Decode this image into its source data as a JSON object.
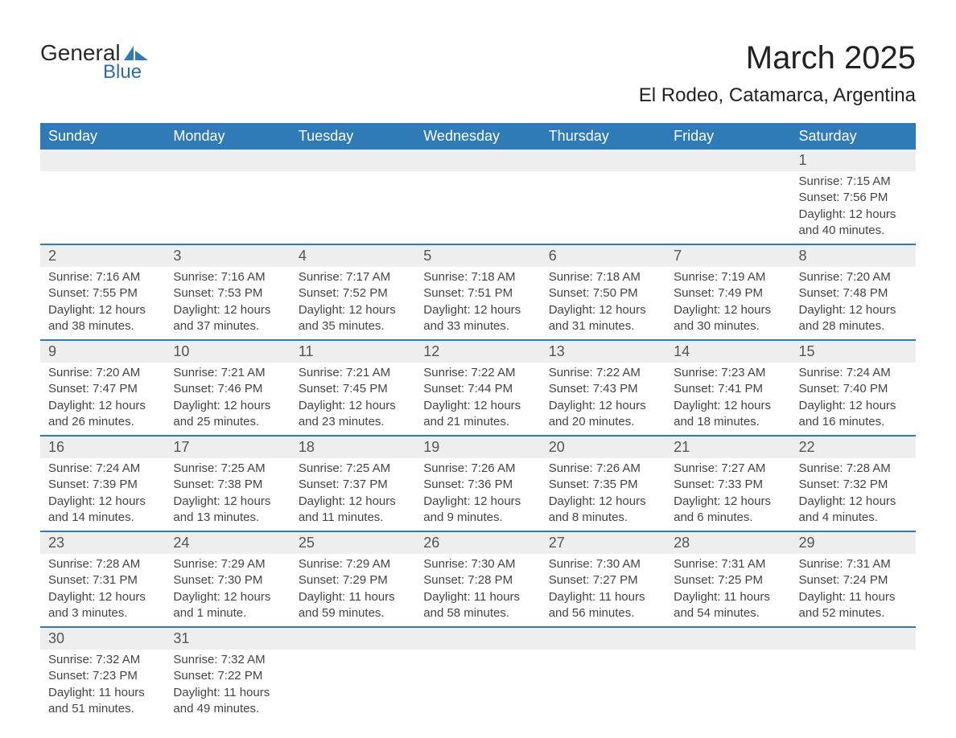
{
  "logo": {
    "text_general": "General",
    "text_blue": "Blue",
    "icon_color": "#2e7bb8"
  },
  "title": "March 2025",
  "location": "El Rodeo, Catamarca, Argentina",
  "colors": {
    "header_bg": "#2e7bb8",
    "header_text": "#ffffff",
    "daynum_bg": "#eeeeee",
    "daynum_text": "#555555",
    "body_text": "#444444",
    "row_border": "#2e7bb8",
    "page_bg": "#ffffff"
  },
  "typography": {
    "title_fontsize": 40,
    "location_fontsize": 24,
    "header_fontsize": 18,
    "daynum_fontsize": 18,
    "body_fontsize": 15
  },
  "weekdays": [
    "Sunday",
    "Monday",
    "Tuesday",
    "Wednesday",
    "Thursday",
    "Friday",
    "Saturday"
  ],
  "weeks": [
    [
      null,
      null,
      null,
      null,
      null,
      null,
      {
        "n": "1",
        "sr": "Sunrise: 7:15 AM",
        "ss": "Sunset: 7:56 PM",
        "dl": "Daylight: 12 hours and 40 minutes."
      }
    ],
    [
      {
        "n": "2",
        "sr": "Sunrise: 7:16 AM",
        "ss": "Sunset: 7:55 PM",
        "dl": "Daylight: 12 hours and 38 minutes."
      },
      {
        "n": "3",
        "sr": "Sunrise: 7:16 AM",
        "ss": "Sunset: 7:53 PM",
        "dl": "Daylight: 12 hours and 37 minutes."
      },
      {
        "n": "4",
        "sr": "Sunrise: 7:17 AM",
        "ss": "Sunset: 7:52 PM",
        "dl": "Daylight: 12 hours and 35 minutes."
      },
      {
        "n": "5",
        "sr": "Sunrise: 7:18 AM",
        "ss": "Sunset: 7:51 PM",
        "dl": "Daylight: 12 hours and 33 minutes."
      },
      {
        "n": "6",
        "sr": "Sunrise: 7:18 AM",
        "ss": "Sunset: 7:50 PM",
        "dl": "Daylight: 12 hours and 31 minutes."
      },
      {
        "n": "7",
        "sr": "Sunrise: 7:19 AM",
        "ss": "Sunset: 7:49 PM",
        "dl": "Daylight: 12 hours and 30 minutes."
      },
      {
        "n": "8",
        "sr": "Sunrise: 7:20 AM",
        "ss": "Sunset: 7:48 PM",
        "dl": "Daylight: 12 hours and 28 minutes."
      }
    ],
    [
      {
        "n": "9",
        "sr": "Sunrise: 7:20 AM",
        "ss": "Sunset: 7:47 PM",
        "dl": "Daylight: 12 hours and 26 minutes."
      },
      {
        "n": "10",
        "sr": "Sunrise: 7:21 AM",
        "ss": "Sunset: 7:46 PM",
        "dl": "Daylight: 12 hours and 25 minutes."
      },
      {
        "n": "11",
        "sr": "Sunrise: 7:21 AM",
        "ss": "Sunset: 7:45 PM",
        "dl": "Daylight: 12 hours and 23 minutes."
      },
      {
        "n": "12",
        "sr": "Sunrise: 7:22 AM",
        "ss": "Sunset: 7:44 PM",
        "dl": "Daylight: 12 hours and 21 minutes."
      },
      {
        "n": "13",
        "sr": "Sunrise: 7:22 AM",
        "ss": "Sunset: 7:43 PM",
        "dl": "Daylight: 12 hours and 20 minutes."
      },
      {
        "n": "14",
        "sr": "Sunrise: 7:23 AM",
        "ss": "Sunset: 7:41 PM",
        "dl": "Daylight: 12 hours and 18 minutes."
      },
      {
        "n": "15",
        "sr": "Sunrise: 7:24 AM",
        "ss": "Sunset: 7:40 PM",
        "dl": "Daylight: 12 hours and 16 minutes."
      }
    ],
    [
      {
        "n": "16",
        "sr": "Sunrise: 7:24 AM",
        "ss": "Sunset: 7:39 PM",
        "dl": "Daylight: 12 hours and 14 minutes."
      },
      {
        "n": "17",
        "sr": "Sunrise: 7:25 AM",
        "ss": "Sunset: 7:38 PM",
        "dl": "Daylight: 12 hours and 13 minutes."
      },
      {
        "n": "18",
        "sr": "Sunrise: 7:25 AM",
        "ss": "Sunset: 7:37 PM",
        "dl": "Daylight: 12 hours and 11 minutes."
      },
      {
        "n": "19",
        "sr": "Sunrise: 7:26 AM",
        "ss": "Sunset: 7:36 PM",
        "dl": "Daylight: 12 hours and 9 minutes."
      },
      {
        "n": "20",
        "sr": "Sunrise: 7:26 AM",
        "ss": "Sunset: 7:35 PM",
        "dl": "Daylight: 12 hours and 8 minutes."
      },
      {
        "n": "21",
        "sr": "Sunrise: 7:27 AM",
        "ss": "Sunset: 7:33 PM",
        "dl": "Daylight: 12 hours and 6 minutes."
      },
      {
        "n": "22",
        "sr": "Sunrise: 7:28 AM",
        "ss": "Sunset: 7:32 PM",
        "dl": "Daylight: 12 hours and 4 minutes."
      }
    ],
    [
      {
        "n": "23",
        "sr": "Sunrise: 7:28 AM",
        "ss": "Sunset: 7:31 PM",
        "dl": "Daylight: 12 hours and 3 minutes."
      },
      {
        "n": "24",
        "sr": "Sunrise: 7:29 AM",
        "ss": "Sunset: 7:30 PM",
        "dl": "Daylight: 12 hours and 1 minute."
      },
      {
        "n": "25",
        "sr": "Sunrise: 7:29 AM",
        "ss": "Sunset: 7:29 PM",
        "dl": "Daylight: 11 hours and 59 minutes."
      },
      {
        "n": "26",
        "sr": "Sunrise: 7:30 AM",
        "ss": "Sunset: 7:28 PM",
        "dl": "Daylight: 11 hours and 58 minutes."
      },
      {
        "n": "27",
        "sr": "Sunrise: 7:30 AM",
        "ss": "Sunset: 7:27 PM",
        "dl": "Daylight: 11 hours and 56 minutes."
      },
      {
        "n": "28",
        "sr": "Sunrise: 7:31 AM",
        "ss": "Sunset: 7:25 PM",
        "dl": "Daylight: 11 hours and 54 minutes."
      },
      {
        "n": "29",
        "sr": "Sunrise: 7:31 AM",
        "ss": "Sunset: 7:24 PM",
        "dl": "Daylight: 11 hours and 52 minutes."
      }
    ],
    [
      {
        "n": "30",
        "sr": "Sunrise: 7:32 AM",
        "ss": "Sunset: 7:23 PM",
        "dl": "Daylight: 11 hours and 51 minutes."
      },
      {
        "n": "31",
        "sr": "Sunrise: 7:32 AM",
        "ss": "Sunset: 7:22 PM",
        "dl": "Daylight: 11 hours and 49 minutes."
      },
      null,
      null,
      null,
      null,
      null
    ]
  ]
}
